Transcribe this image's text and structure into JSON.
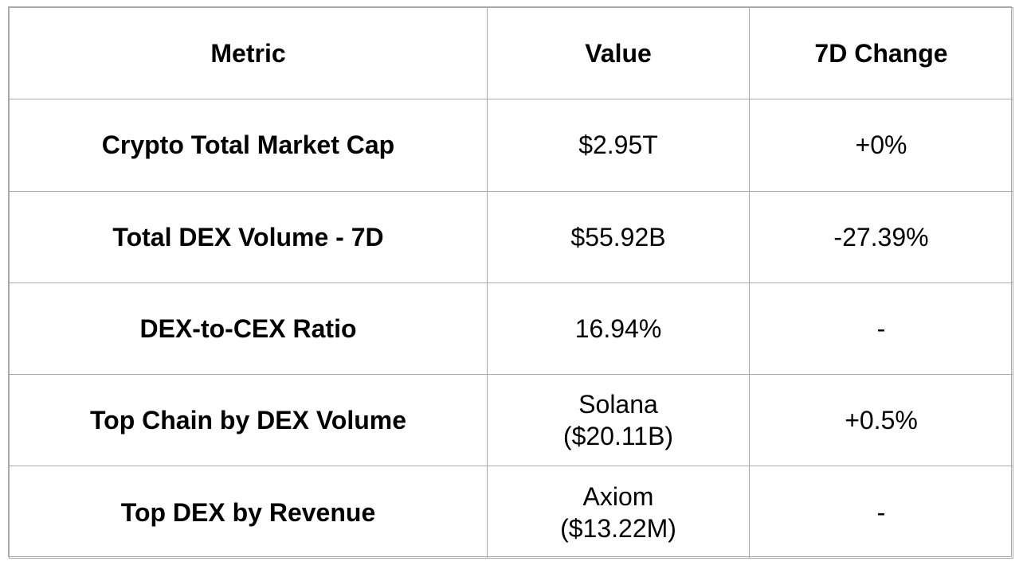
{
  "table": {
    "headers": [
      "Metric",
      "Value",
      "7D Change"
    ],
    "rows": [
      {
        "metric": "Crypto Total Market Cap",
        "value": [
          "$2.95T"
        ],
        "change": "+0%"
      },
      {
        "metric": "Total DEX Volume - 7D",
        "value": [
          "$55.92B"
        ],
        "change": "-27.39%"
      },
      {
        "metric": "DEX-to-CEX Ratio",
        "value": [
          "16.94%"
        ],
        "change": "-"
      },
      {
        "metric": "Top Chain by DEX Volume",
        "value": [
          "Solana",
          "($20.11B)"
        ],
        "change": "+0.5%"
      },
      {
        "metric": "Top DEX by Revenue",
        "value": [
          "Axiom",
          "($13.22M)"
        ],
        "change": "-"
      }
    ]
  },
  "colors": {
    "border": "#aaaaaa",
    "text": "#000000",
    "background": "#ffffff"
  }
}
